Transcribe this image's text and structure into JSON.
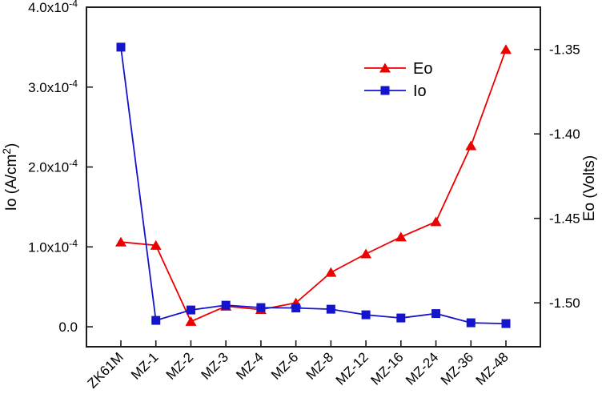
{
  "chart_data": {
    "type": "line",
    "title": "",
    "background": "#ffffff",
    "frame_color": "#1c1c1c",
    "grid": false,
    "categories": [
      "ZK61M",
      "MZ-1",
      "MZ-2",
      "MZ-3",
      "MZ-4",
      "MZ-6",
      "MZ-8",
      "MZ-12",
      "MZ-16",
      "MZ-24",
      "MZ-36",
      "MZ-48"
    ],
    "series": [
      {
        "name": "Eo",
        "axis": "right",
        "color": "#ee0000",
        "marker": "triangle",
        "values": [
          -1.464,
          -1.466,
          -1.511,
          -1.502,
          -1.504,
          -1.5,
          -1.482,
          -1.471,
          -1.461,
          -1.452,
          -1.407,
          -1.35
        ]
      },
      {
        "name": "Io",
        "axis": "left",
        "color": "#1414cc",
        "marker": "square",
        "values": [
          0.00035,
          8e-06,
          2.1e-05,
          2.7e-05,
          2.4e-05,
          2.35e-05,
          2.2e-05,
          1.5e-05,
          1.1e-05,
          1.65e-05,
          5e-06,
          4e-06
        ]
      }
    ],
    "left_axis": {
      "label": "Io (A/cm^{2})",
      "range": [
        -2.5e-05,
        0.0004
      ],
      "ticks": [
        {
          "v": 0,
          "label": "0.0"
        },
        {
          "v": 0.0001,
          "label": "1.0x10^{-4}"
        },
        {
          "v": 0.0002,
          "label": "2.0x10^{-4}"
        },
        {
          "v": 0.0003,
          "label": "3.0x10^{-4}"
        },
        {
          "v": 0.0004,
          "label": "4.0x10^{-4}"
        }
      ]
    },
    "right_axis": {
      "label": "Eo (Volts)",
      "range": [
        -1.526,
        -1.325
      ],
      "ticks": [
        {
          "v": -1.35,
          "label": "-1.35"
        },
        {
          "v": -1.4,
          "label": "-1.40"
        },
        {
          "v": -1.45,
          "label": "-1.45"
        },
        {
          "v": -1.5,
          "label": "-1.50"
        }
      ]
    },
    "x_axis": {
      "label": "",
      "tick_rotation_deg": -45
    },
    "legend": {
      "position": "inside-top-right",
      "items": [
        {
          "label": "Eo",
          "color": "#ee0000",
          "marker": "triangle"
        },
        {
          "label": "Io",
          "color": "#1414cc",
          "marker": "square"
        }
      ]
    }
  }
}
